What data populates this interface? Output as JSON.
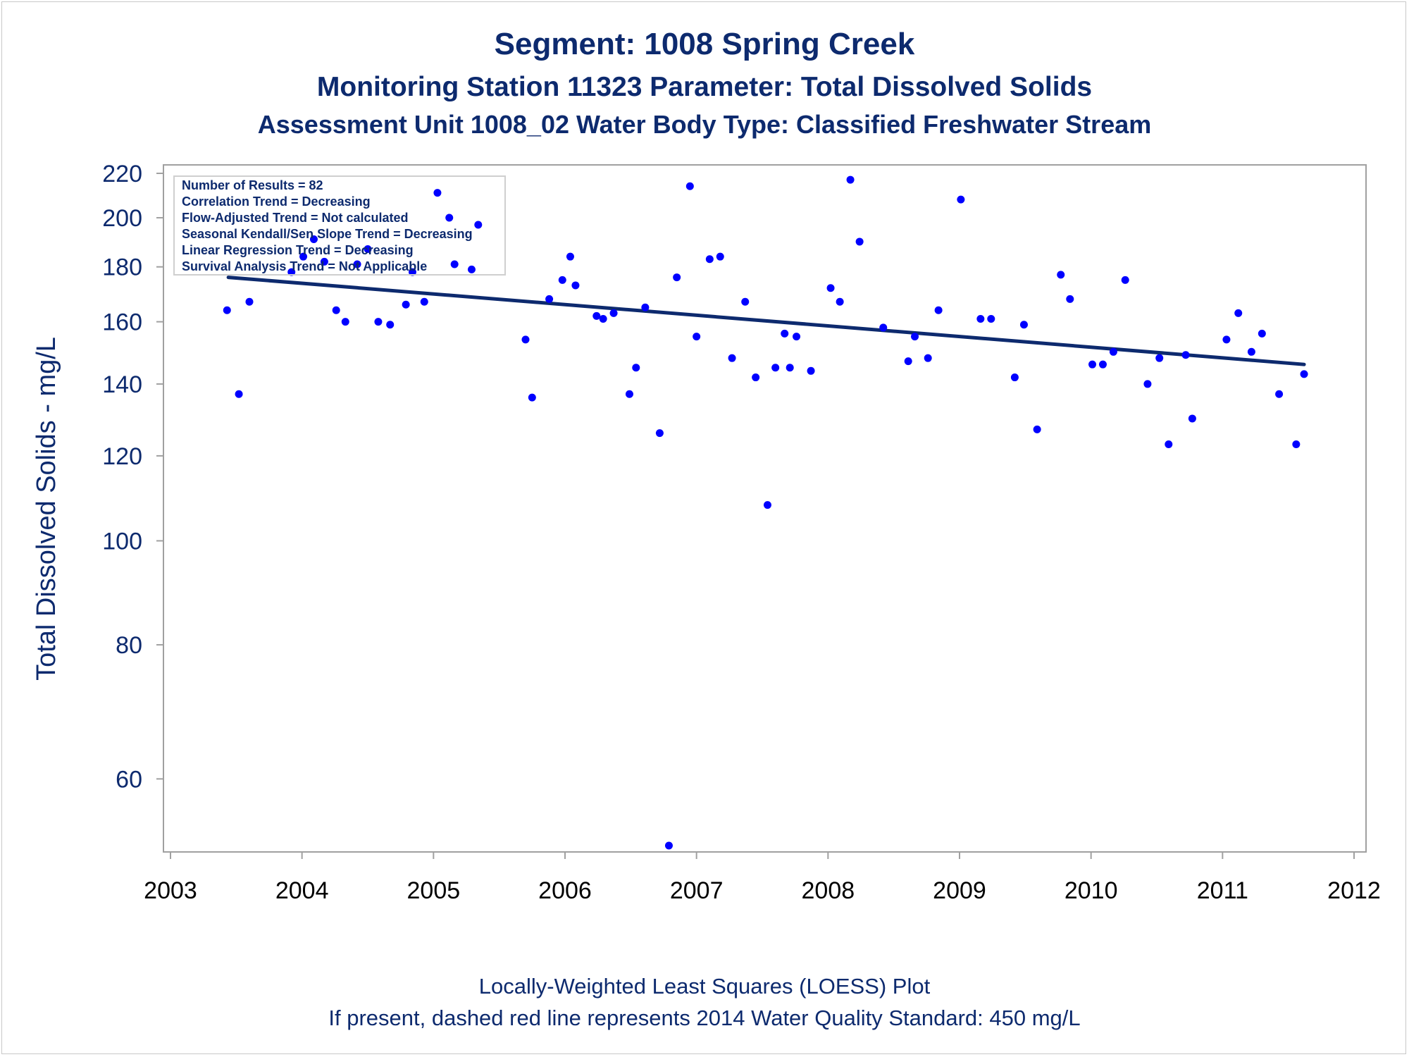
{
  "titles": {
    "line1": "Segment: 1008  Spring Creek",
    "line2": "Monitoring Station 11323 Parameter: Total Dissolved Solids",
    "line3": "Assessment Unit 1008_02   Water Body Type: Classified Freshwater Stream"
  },
  "footnotes": {
    "line1": "Locally-Weighted Least Squares (LOESS) Plot",
    "line2": "If present, dashed red line represents 2014 Water Quality Standard: 450   mg/L"
  },
  "stats_box": [
    "Number of Results = 82",
    "Correlation Trend = Decreasing",
    "Flow-Adjusted Trend = Not calculated",
    "Seasonal Kendall/Sen Slope Trend = Decreasing",
    "Linear Regression Trend = Decreasing",
    "Survival Analysis Trend = Not Applicable"
  ],
  "colors": {
    "text": "#0d2a6e",
    "point": "#0000ff",
    "trend_line": "#0d2a6e",
    "axis": "#a0a0a0"
  },
  "chart_data": {
    "type": "scatter",
    "title": "Segment: 1008  Spring Creek",
    "xlabel": "",
    "ylabel": "Total Dissolved Solids - mg/L",
    "xlim": [
      2003,
      2012
    ],
    "ylim": [
      52,
      222
    ],
    "y_scale": "log",
    "x_ticks": [
      2003,
      2004,
      2005,
      2006,
      2007,
      2008,
      2009,
      2010,
      2011,
      2012
    ],
    "y_ticks": [
      60,
      80,
      100,
      120,
      140,
      160,
      180,
      200,
      220
    ],
    "grid": false,
    "legend": "none",
    "trend_line": {
      "x": [
        2003.44,
        2011.62
      ],
      "y": [
        176,
        146
      ]
    },
    "points": [
      [
        2003.43,
        164
      ],
      [
        2003.52,
        137
      ],
      [
        2003.6,
        167
      ],
      [
        2003.92,
        178
      ],
      [
        2004.01,
        184
      ],
      [
        2004.09,
        191
      ],
      [
        2004.17,
        182
      ],
      [
        2004.26,
        164
      ],
      [
        2004.33,
        160
      ],
      [
        2004.42,
        181
      ],
      [
        2004.5,
        187
      ],
      [
        2004.58,
        160
      ],
      [
        2004.67,
        159
      ],
      [
        2004.79,
        166
      ],
      [
        2004.84,
        178
      ],
      [
        2004.93,
        167
      ],
      [
        2005.03,
        211
      ],
      [
        2005.12,
        200
      ],
      [
        2005.16,
        181
      ],
      [
        2005.29,
        179
      ],
      [
        2005.34,
        197
      ],
      [
        2005.7,
        154
      ],
      [
        2005.75,
        136
      ],
      [
        2005.88,
        168
      ],
      [
        2005.98,
        175
      ],
      [
        2006.04,
        184
      ],
      [
        2006.08,
        173
      ],
      [
        2006.24,
        162
      ],
      [
        2006.29,
        161
      ],
      [
        2006.37,
        163
      ],
      [
        2006.49,
        137
      ],
      [
        2006.54,
        145
      ],
      [
        2006.61,
        165
      ],
      [
        2006.72,
        126
      ],
      [
        2006.79,
        52
      ],
      [
        2006.85,
        176
      ],
      [
        2006.95,
        214
      ],
      [
        2007.0,
        155
      ],
      [
        2007.1,
        183
      ],
      [
        2007.18,
        184
      ],
      [
        2007.27,
        148
      ],
      [
        2007.37,
        167
      ],
      [
        2007.45,
        142
      ],
      [
        2007.54,
        108
      ],
      [
        2007.6,
        145
      ],
      [
        2007.67,
        156
      ],
      [
        2007.71,
        145
      ],
      [
        2007.76,
        155
      ],
      [
        2007.87,
        144
      ],
      [
        2008.02,
        172
      ],
      [
        2008.09,
        167
      ],
      [
        2008.17,
        217
      ],
      [
        2008.24,
        190
      ],
      [
        2008.42,
        158
      ],
      [
        2008.61,
        147
      ],
      [
        2008.66,
        155
      ],
      [
        2008.76,
        148
      ],
      [
        2008.84,
        164
      ],
      [
        2009.01,
        208
      ],
      [
        2009.16,
        161
      ],
      [
        2009.24,
        161
      ],
      [
        2009.42,
        142
      ],
      [
        2009.49,
        159
      ],
      [
        2009.59,
        127
      ],
      [
        2009.77,
        177
      ],
      [
        2009.84,
        168
      ],
      [
        2010.01,
        146
      ],
      [
        2010.09,
        146
      ],
      [
        2010.17,
        150
      ],
      [
        2010.26,
        175
      ],
      [
        2010.43,
        140
      ],
      [
        2010.52,
        148
      ],
      [
        2010.59,
        123
      ],
      [
        2010.72,
        149
      ],
      [
        2010.77,
        130
      ],
      [
        2011.03,
        154
      ],
      [
        2011.12,
        163
      ],
      [
        2011.22,
        150
      ],
      [
        2011.3,
        156
      ],
      [
        2011.43,
        137
      ],
      [
        2011.56,
        123
      ],
      [
        2011.62,
        143
      ]
    ]
  }
}
